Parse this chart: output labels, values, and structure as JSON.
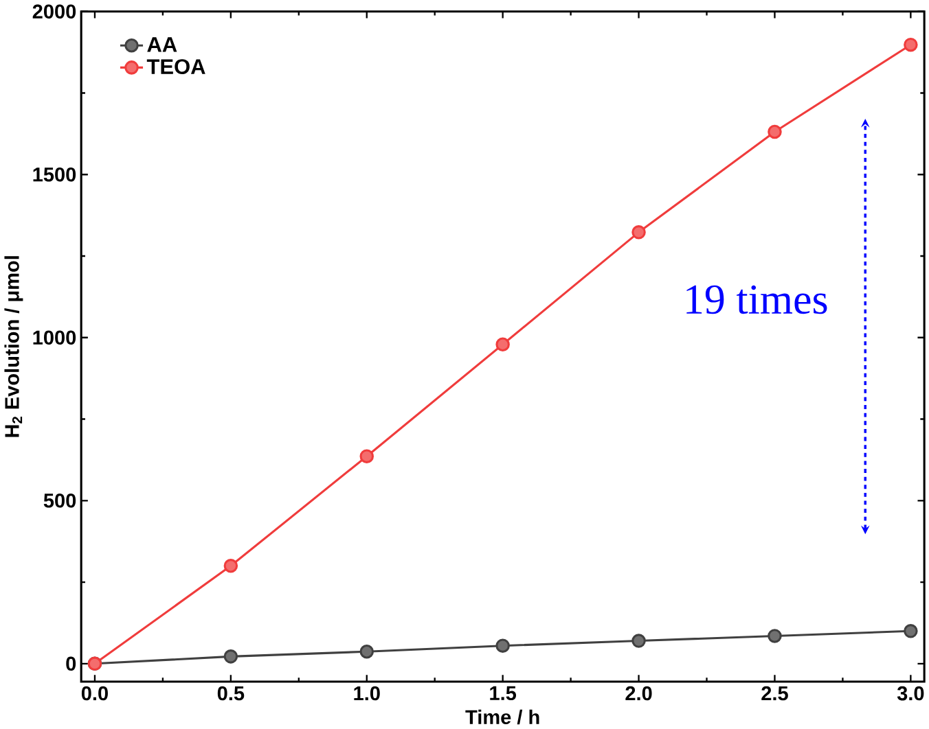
{
  "chart_data": {
    "type": "line",
    "xlabel": "Time / h",
    "ylabel": "H$_{2}$ Evolution / μmol",
    "x": [
      0,
      0.5,
      1.0,
      1.5,
      2.0,
      2.5,
      3.0
    ],
    "series": [
      {
        "name": "AA",
        "color": "#404040",
        "values": [
          0,
          22,
          37,
          55,
          70,
          85,
          100
        ]
      },
      {
        "name": "TEOA",
        "color": "#f03c3c",
        "values": [
          0,
          300,
          636,
          979,
          1323,
          1631,
          1898
        ]
      }
    ],
    "xlim": [
      -0.05,
      3.05
    ],
    "ylim": [
      -55,
      2000
    ],
    "xticks": [
      {
        "value": 0,
        "label": "0.0"
      },
      0.5,
      {
        "value": 1,
        "label": "1.0"
      },
      1.5,
      {
        "value": 2,
        "label": "2.0"
      },
      2.5,
      {
        "value": 3,
        "label": "3.0"
      }
    ],
    "yticks": [
      0,
      500,
      1000,
      1500,
      2000
    ],
    "annotations": [
      "19 times"
    ],
    "legend": "top left",
    "marker": "circle",
    "line_style": "solid",
    "grid": false
  }
}
